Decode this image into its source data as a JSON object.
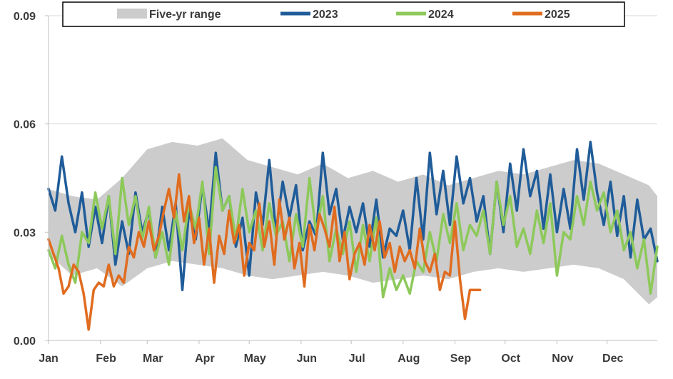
{
  "chart_data": {
    "type": "line",
    "title": "",
    "xlabel": "",
    "ylabel": "",
    "ylim": [
      0,
      0.09
    ],
    "y_ticks": [
      "0.00",
      "0.03",
      "0.06",
      "0.09"
    ],
    "grid": true,
    "legend_position": "top",
    "months": [
      "Jan",
      "Feb",
      "Mar",
      "Apr",
      "May",
      "Jun",
      "Jul",
      "Aug",
      "Sep",
      "Oct",
      "Nov",
      "Dec"
    ],
    "range": {
      "name": "Five-yr range",
      "color": "#cccccc",
      "x": [
        1,
        15,
        30,
        45,
        60,
        75,
        90,
        105,
        120,
        135,
        150,
        165,
        180,
        195,
        210,
        225,
        240,
        255,
        270,
        285,
        300,
        315,
        330,
        345,
        360,
        365
      ],
      "low": [
        0.024,
        0.018,
        0.02,
        0.015,
        0.02,
        0.022,
        0.021,
        0.02,
        0.018,
        0.017,
        0.018,
        0.019,
        0.018,
        0.016,
        0.017,
        0.018,
        0.017,
        0.019,
        0.02,
        0.019,
        0.02,
        0.021,
        0.02,
        0.017,
        0.01,
        0.012
      ],
      "high": [
        0.042,
        0.04,
        0.039,
        0.045,
        0.053,
        0.055,
        0.054,
        0.056,
        0.05,
        0.048,
        0.046,
        0.049,
        0.045,
        0.047,
        0.044,
        0.046,
        0.043,
        0.045,
        0.047,
        0.046,
        0.048,
        0.05,
        0.049,
        0.046,
        0.043,
        0.04
      ]
    },
    "series": [
      {
        "name": "2023",
        "color": "#1f5c99",
        "x": [
          1,
          5,
          9,
          13,
          17,
          21,
          25,
          29,
          33,
          37,
          41,
          45,
          49,
          53,
          57,
          61,
          65,
          69,
          73,
          77,
          81,
          85,
          89,
          93,
          97,
          101,
          105,
          109,
          113,
          117,
          121,
          125,
          129,
          133,
          137,
          141,
          145,
          149,
          153,
          157,
          161,
          165,
          169,
          173,
          177,
          181,
          185,
          189,
          193,
          197,
          201,
          205,
          209,
          213,
          217,
          221,
          225,
          229,
          233,
          237,
          241,
          245,
          249,
          253,
          257,
          261,
          265,
          269,
          273,
          277,
          281,
          285,
          289,
          293,
          297,
          301,
          305,
          309,
          313,
          317,
          321,
          325,
          329,
          333,
          337,
          341,
          345,
          349,
          353,
          357,
          361,
          365
        ],
        "values": [
          0.042,
          0.036,
          0.051,
          0.038,
          0.03,
          0.041,
          0.026,
          0.037,
          0.027,
          0.04,
          0.021,
          0.033,
          0.024,
          0.041,
          0.03,
          0.036,
          0.023,
          0.037,
          0.025,
          0.038,
          0.014,
          0.036,
          0.028,
          0.043,
          0.03,
          0.052,
          0.036,
          0.04,
          0.026,
          0.034,
          0.018,
          0.041,
          0.032,
          0.05,
          0.03,
          0.044,
          0.034,
          0.043,
          0.025,
          0.033,
          0.029,
          0.052,
          0.035,
          0.042,
          0.028,
          0.037,
          0.03,
          0.038,
          0.026,
          0.039,
          0.023,
          0.031,
          0.029,
          0.036,
          0.025,
          0.045,
          0.028,
          0.052,
          0.035,
          0.047,
          0.032,
          0.051,
          0.038,
          0.045,
          0.033,
          0.04,
          0.024,
          0.044,
          0.03,
          0.049,
          0.036,
          0.053,
          0.04,
          0.047,
          0.031,
          0.046,
          0.03,
          0.042,
          0.031,
          0.053,
          0.039,
          0.055,
          0.041,
          0.032,
          0.044,
          0.029,
          0.04,
          0.023,
          0.039,
          0.028,
          0.031,
          0.022
        ]
      },
      {
        "name": "2024",
        "color": "#8dc95a",
        "x": [
          1,
          5,
          9,
          13,
          17,
          21,
          25,
          29,
          33,
          37,
          41,
          45,
          49,
          53,
          57,
          61,
          65,
          69,
          73,
          77,
          81,
          85,
          89,
          93,
          97,
          101,
          105,
          109,
          113,
          117,
          121,
          125,
          129,
          133,
          137,
          141,
          145,
          149,
          153,
          157,
          161,
          165,
          169,
          173,
          177,
          181,
          185,
          189,
          193,
          197,
          201,
          205,
          209,
          213,
          217,
          221,
          225,
          229,
          233,
          237,
          241,
          245,
          249,
          253,
          257,
          261,
          265,
          269,
          273,
          277,
          281,
          285,
          289,
          293,
          297,
          301,
          305,
          309,
          313,
          317,
          321,
          325,
          329,
          333,
          337,
          341,
          345,
          349,
          353,
          357,
          361,
          365
        ],
        "values": [
          0.025,
          0.02,
          0.029,
          0.021,
          0.016,
          0.03,
          0.027,
          0.041,
          0.031,
          0.04,
          0.024,
          0.045,
          0.032,
          0.04,
          0.028,
          0.037,
          0.023,
          0.03,
          0.021,
          0.036,
          0.025,
          0.038,
          0.031,
          0.044,
          0.024,
          0.048,
          0.036,
          0.04,
          0.028,
          0.042,
          0.03,
          0.036,
          0.025,
          0.038,
          0.029,
          0.033,
          0.022,
          0.035,
          0.026,
          0.045,
          0.03,
          0.04,
          0.022,
          0.031,
          0.024,
          0.033,
          0.019,
          0.032,
          0.022,
          0.034,
          0.012,
          0.02,
          0.014,
          0.018,
          0.013,
          0.022,
          0.019,
          0.03,
          0.022,
          0.035,
          0.027,
          0.038,
          0.025,
          0.032,
          0.029,
          0.036,
          0.024,
          0.044,
          0.032,
          0.04,
          0.026,
          0.031,
          0.024,
          0.036,
          0.027,
          0.038,
          0.018,
          0.03,
          0.028,
          0.04,
          0.032,
          0.044,
          0.036,
          0.041,
          0.03,
          0.036,
          0.025,
          0.03,
          0.02,
          0.028,
          0.013,
          0.026
        ]
      },
      {
        "name": "2025",
        "color": "#e06c1f",
        "x": [
          1,
          4,
          7,
          10,
          13,
          16,
          19,
          22,
          25,
          28,
          31,
          34,
          37,
          40,
          43,
          46,
          49,
          52,
          55,
          58,
          61,
          64,
          67,
          70,
          73,
          76,
          79,
          82,
          85,
          88,
          91,
          94,
          97,
          100,
          103,
          106,
          109,
          112,
          115,
          118,
          121,
          124,
          127,
          130,
          133,
          136,
          139,
          142,
          145,
          148,
          151,
          154,
          157,
          160,
          163,
          166,
          169,
          172,
          175,
          178,
          181,
          184,
          187,
          190,
          193,
          196,
          199,
          202,
          205,
          208,
          211,
          214,
          217,
          220,
          223,
          226,
          229,
          232,
          235,
          238,
          241,
          244,
          247,
          250,
          253,
          256,
          259
        ],
        "values": [
          0.028,
          0.024,
          0.02,
          0.013,
          0.015,
          0.021,
          0.019,
          0.013,
          0.003,
          0.014,
          0.016,
          0.015,
          0.021,
          0.015,
          0.018,
          0.016,
          0.026,
          0.023,
          0.03,
          0.026,
          0.033,
          0.025,
          0.029,
          0.036,
          0.042,
          0.034,
          0.046,
          0.033,
          0.04,
          0.027,
          0.034,
          0.021,
          0.031,
          0.016,
          0.029,
          0.024,
          0.036,
          0.027,
          0.032,
          0.018,
          0.027,
          0.025,
          0.038,
          0.026,
          0.033,
          0.021,
          0.039,
          0.028,
          0.034,
          0.02,
          0.027,
          0.015,
          0.032,
          0.025,
          0.035,
          0.031,
          0.026,
          0.037,
          0.022,
          0.03,
          0.017,
          0.024,
          0.027,
          0.021,
          0.032,
          0.025,
          0.033,
          0.023,
          0.027,
          0.019,
          0.026,
          0.022,
          0.025,
          0.02,
          0.031,
          0.022,
          0.019,
          0.024,
          0.014,
          0.019,
          0.018,
          0.033,
          0.017,
          0.006,
          0.014,
          0.014,
          0.014
        ]
      }
    ]
  }
}
